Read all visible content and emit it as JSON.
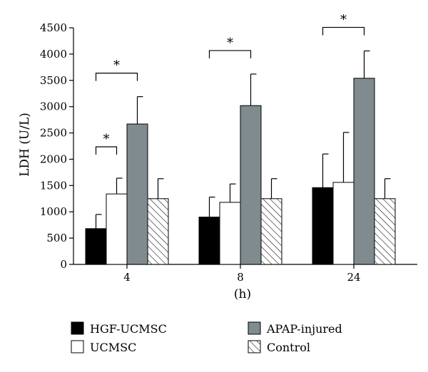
{
  "chart_data": {
    "type": "bar",
    "xlabel": "(h)",
    "ylabel": "LDH (U/L)",
    "ylim": [
      0,
      4500
    ],
    "yticks": [
      0,
      500,
      1000,
      1500,
      2000,
      2500,
      3000,
      3500,
      4000,
      4500
    ],
    "categories": [
      "4",
      "8",
      "24"
    ],
    "series": [
      {
        "name": "HGF-UCMSC",
        "values": [
          680,
          900,
          1460
        ],
        "errors": [
          270,
          380,
          640
        ],
        "fill": "#000000"
      },
      {
        "name": "UCMSC",
        "values": [
          1340,
          1180,
          1560
        ],
        "errors": [
          300,
          350,
          950
        ],
        "fill": "#ffffff"
      },
      {
        "name": "APAP-injured",
        "values": [
          2670,
          3020,
          3540
        ],
        "errors": [
          520,
          600,
          520
        ],
        "fill": "#7f8b8f"
      },
      {
        "name": "Control",
        "values": [
          1250,
          1250,
          1250
        ],
        "errors": [
          380,
          380,
          380
        ],
        "fill": "hatch"
      }
    ],
    "significance": [
      {
        "category": 0,
        "from_series": 0,
        "to_series": 2,
        "label": "*"
      },
      {
        "category": 0,
        "from_series": 0,
        "to_series": 1,
        "label": "*"
      },
      {
        "category": 1,
        "from_series": 0,
        "to_series": 2,
        "label": "*"
      },
      {
        "category": 2,
        "from_series": 0,
        "to_series": 2,
        "label": "*"
      }
    ],
    "legend_position": "bottom"
  }
}
